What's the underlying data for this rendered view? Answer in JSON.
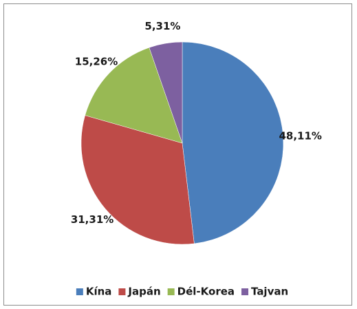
{
  "chart_data": {
    "type": "pie",
    "categories": [
      "Kína",
      "Japán",
      "Dél-Korea",
      "Tajvan"
    ],
    "values": [
      48.11,
      31.31,
      15.26,
      5.31
    ],
    "value_labels": [
      "48,11%",
      "31,31%",
      "15,26%",
      "5,31%"
    ],
    "colors": [
      "#4a7ebb",
      "#be4b48",
      "#98b954",
      "#7d60a0"
    ],
    "legend": "bottom"
  }
}
